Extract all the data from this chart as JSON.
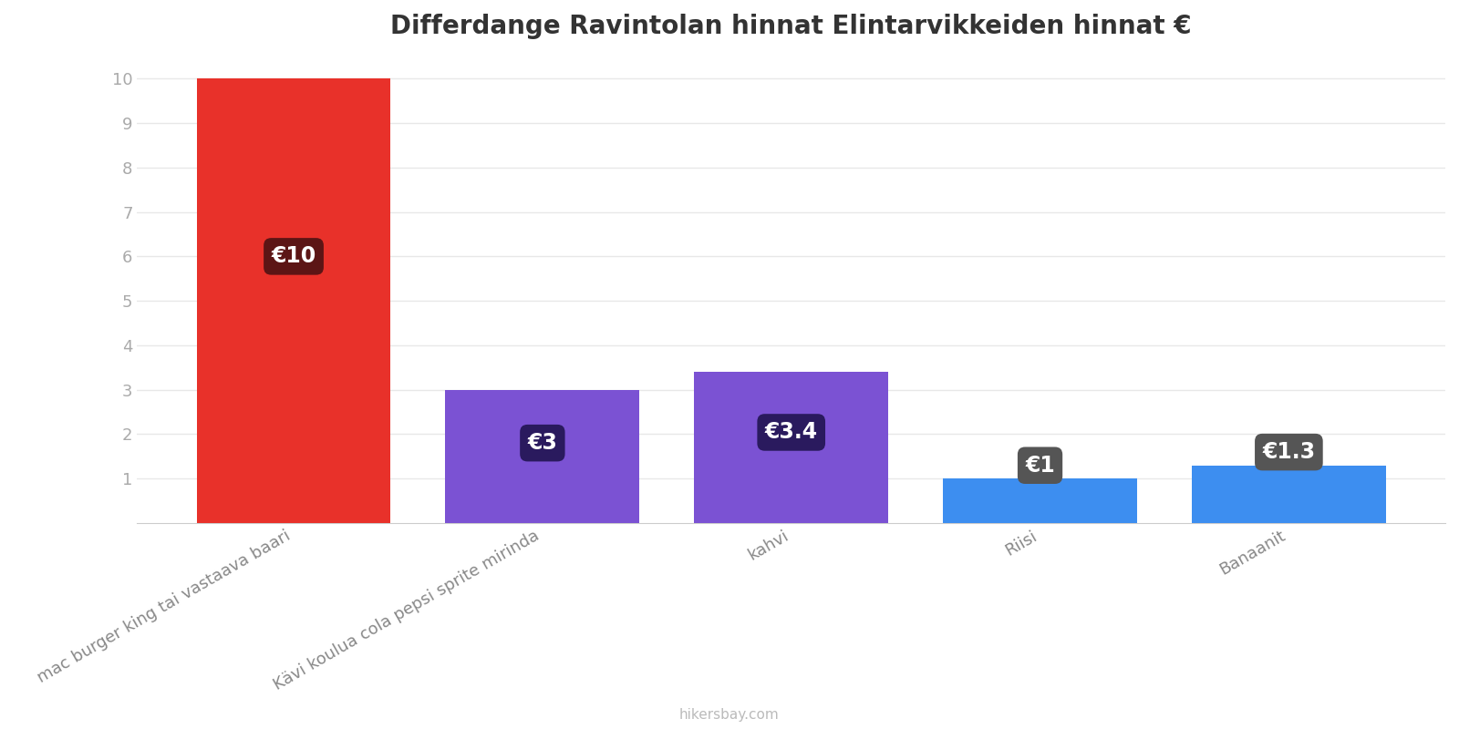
{
  "title": "Differdange Ravintolan hinnat Elintarvikkeiden hinnat €",
  "categories": [
    "mac burger king tai vastaava baari",
    "Kävi koulua cola pepsi sprite mirinda",
    "kahvi",
    "Riisi",
    "Banaanit"
  ],
  "values": [
    10,
    3,
    3.4,
    1,
    1.3
  ],
  "bar_colors": [
    "#e8312a",
    "#7b52d3",
    "#7b52d3",
    "#3d8ef0",
    "#3d8ef0"
  ],
  "label_texts": [
    "€10",
    "€3",
    "€3.4",
    "€1",
    "€1.3"
  ],
  "label_box_colors": [
    "#5c1515",
    "#2a1a5e",
    "#2a1a5e",
    "#555555",
    "#555555"
  ],
  "background_color": "#ffffff",
  "grid_color": "#e8e8e8",
  "ytick_color": "#aaaaaa",
  "xtick_color": "#888888",
  "title_fontsize": 20,
  "ytick_fontsize": 13,
  "label_fontsize": 17,
  "xtick_fontsize": 13,
  "footer_text": "hikersbay.com",
  "ylim_max": 10.5,
  "yticks": [
    1,
    2,
    3,
    4,
    5,
    6,
    7,
    8,
    9,
    10
  ],
  "bar_width": 0.78
}
